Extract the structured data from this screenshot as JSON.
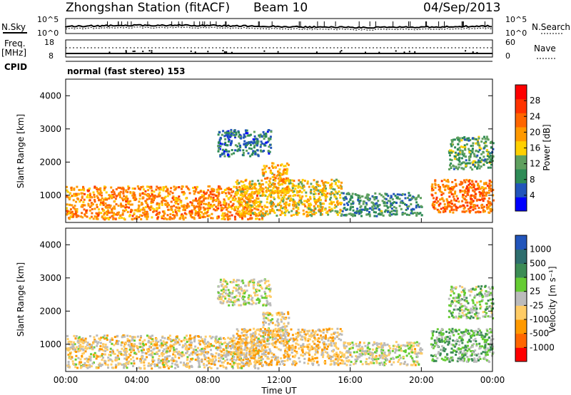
{
  "header": {
    "station": "Zhongshan Station (fitACF)",
    "beam": "Beam 10",
    "date": "04/Sep/2013"
  },
  "noise_panel": {
    "left_label": "N.Sky",
    "right_label": "N.Search",
    "left_ticks": [
      "10^5",
      "10^0"
    ],
    "right_ticks": [
      "10^5",
      "10^0"
    ]
  },
  "freq_panel": {
    "left_label_1": "Freq.",
    "left_label_2": "[MHz]",
    "right_label": "Nave",
    "left_ticks": [
      "18",
      "8"
    ],
    "right_ticks": [
      "60",
      "0"
    ]
  },
  "cpid": {
    "label": "CPID",
    "mode_text": "normal (fast stereo) 153"
  },
  "colors": {
    "power": [
      "#0000ff",
      "#2255bb",
      "#2e8b57",
      "#5fa05f",
      "#ffd000",
      "#ff9900",
      "#ff6600",
      "#ff3300",
      "#ff0000"
    ],
    "velocity": [
      "#2255bb",
      "#2e6e6e",
      "#3c8c55",
      "#66cc33",
      "#bbbbbb",
      "#ffcc66",
      "#ff9900",
      "#ff6600",
      "#ff0000"
    ]
  },
  "chart_data": [
    {
      "type": "heatmap",
      "panel": "power",
      "ylabel": "Slant Range [km]",
      "yticks": [
        "1000",
        "2000",
        "3000",
        "4000"
      ],
      "ylim": [
        180,
        4500
      ],
      "xlim": [
        0,
        24
      ],
      "colorbar": {
        "label": "Power [dB]",
        "ticks": [
          "4",
          "8",
          "12",
          "16",
          "20",
          "24",
          "28"
        ],
        "range": [
          0,
          30
        ]
      },
      "regions": [
        {
          "t0": 0.0,
          "t1": 11.0,
          "r0": 300,
          "r1": 1300,
          "value": 20
        },
        {
          "t0": 9.5,
          "t1": 15.5,
          "r0": 400,
          "r1": 1500,
          "value": 16
        },
        {
          "t0": 11.0,
          "t1": 12.5,
          "r0": 1100,
          "r1": 2000,
          "value": 18
        },
        {
          "t0": 15.5,
          "t1": 20.0,
          "r0": 400,
          "r1": 1100,
          "value": 8
        },
        {
          "t0": 20.5,
          "t1": 24.0,
          "r0": 500,
          "r1": 1500,
          "value": 22
        },
        {
          "t0": 8.5,
          "t1": 11.5,
          "r0": 2200,
          "r1": 3000,
          "value": 6
        },
        {
          "t0": 21.5,
          "t1": 24.0,
          "r0": 1800,
          "r1": 2800,
          "value": 10
        }
      ]
    },
    {
      "type": "heatmap",
      "panel": "velocity",
      "ylabel": "Slant Range [km]",
      "yticks": [
        "1000",
        "2000",
        "3000",
        "4000"
      ],
      "ylim": [
        180,
        4500
      ],
      "xlim": [
        0,
        24
      ],
      "xticks": [
        "00:00",
        "04:00",
        "08:00",
        "12:00",
        "16:00",
        "20:00",
        "00:00"
      ],
      "xlabel": "Time UT",
      "colorbar": {
        "label": "Velocity [m s⁻¹]",
        "ticks": [
          "1000",
          "500",
          "100",
          "25",
          "-25",
          "-100",
          "-500",
          "-1000"
        ],
        "range": [
          -1200,
          1200
        ]
      },
      "regions": [
        {
          "t0": 0.0,
          "t1": 11.0,
          "r0": 300,
          "r1": 1300,
          "value": -200
        },
        {
          "t0": 9.5,
          "t1": 15.5,
          "r0": 400,
          "r1": 1500,
          "value": -300
        },
        {
          "t0": 11.0,
          "t1": 12.5,
          "r0": 1100,
          "r1": 2000,
          "value": -150
        },
        {
          "t0": 15.5,
          "t1": 20.0,
          "r0": 400,
          "r1": 1100,
          "value": -80
        },
        {
          "t0": 20.5,
          "t1": 24.0,
          "r0": 500,
          "r1": 1500,
          "value": 300
        },
        {
          "t0": 8.5,
          "t1": 11.5,
          "r0": 2200,
          "r1": 3000,
          "value": 20
        },
        {
          "t0": 21.5,
          "t1": 24.0,
          "r0": 1800,
          "r1": 2800,
          "value": 200
        }
      ]
    }
  ]
}
